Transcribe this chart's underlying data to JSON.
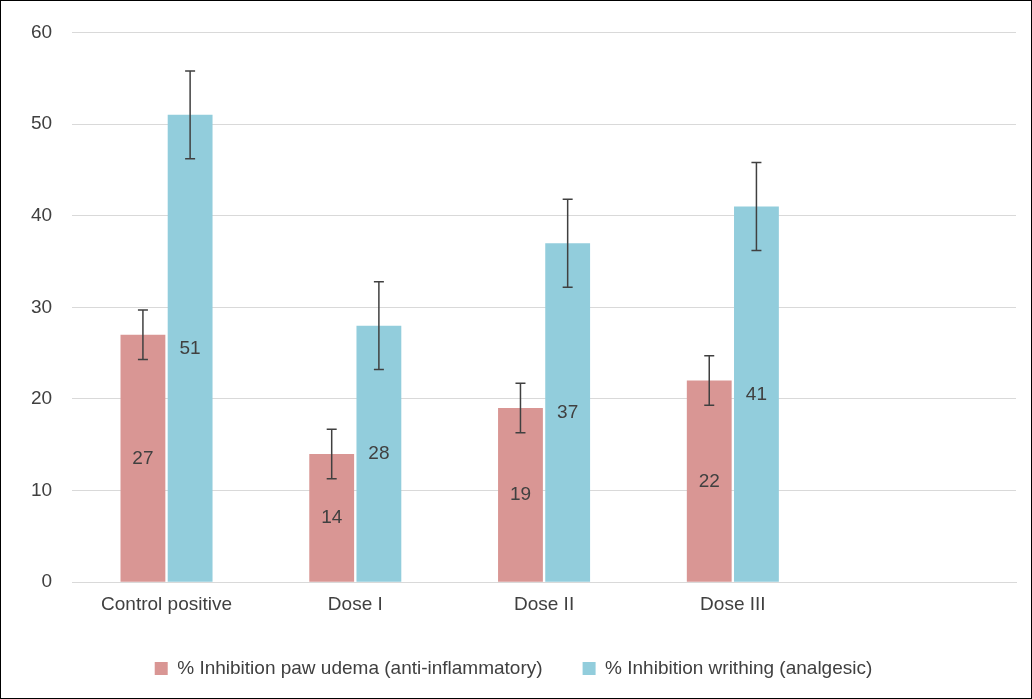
{
  "chart_data": {
    "type": "bar",
    "categories": [
      "Control positive",
      "Dose I",
      "Dose II",
      "Dose III",
      null
    ],
    "series": [
      {
        "name": "% Inhibition paw udema (anti-inflammatory)",
        "color": "#d99694",
        "values": [
          27,
          14,
          19,
          22,
          null
        ],
        "errors": [
          2.7,
          2.7,
          2.7,
          2.7,
          null
        ]
      },
      {
        "name": "% Inhibition writhing (analgesic)",
        "color": "#92cddc",
        "values": [
          51,
          28,
          37,
          41,
          null
        ],
        "errors": [
          4.8,
          4.8,
          4.8,
          4.8,
          null
        ]
      }
    ],
    "ylim": [
      0,
      60
    ],
    "yticks": [
      0,
      10,
      20,
      30,
      40,
      50,
      60
    ],
    "grid": "y",
    "legend": "bottom",
    "data_labels": true
  }
}
